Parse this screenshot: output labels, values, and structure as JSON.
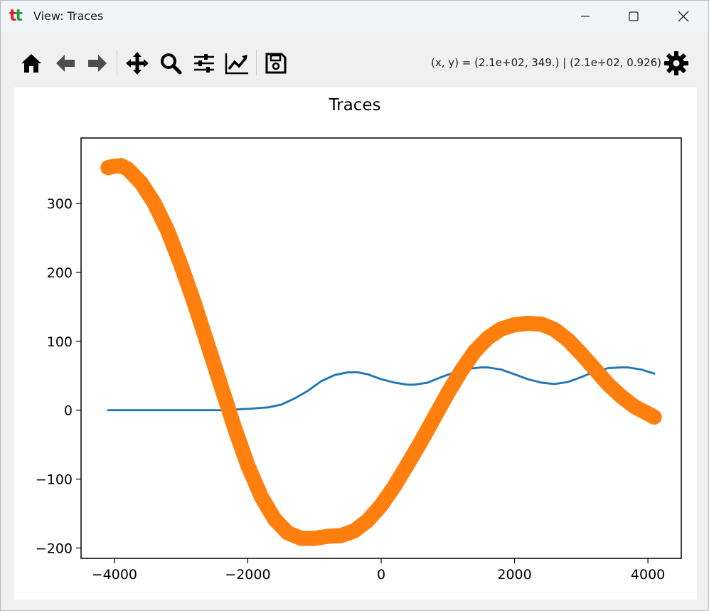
{
  "window": {
    "app_icon": "tt-logo",
    "title": "View: Traces",
    "controls": [
      "minimize-icon",
      "maximize-icon",
      "close-icon"
    ]
  },
  "toolbar": {
    "buttons": [
      {
        "name": "home",
        "icon": "home-icon"
      },
      {
        "name": "back",
        "icon": "arrow-left-icon"
      },
      {
        "name": "forward",
        "icon": "arrow-right-icon"
      },
      {
        "name": "pan",
        "icon": "move-arrows-icon"
      },
      {
        "name": "zoom",
        "icon": "magnifier-icon"
      },
      {
        "name": "subplots",
        "icon": "sliders-icon"
      },
      {
        "name": "axes",
        "icon": "line-chart-icon"
      },
      {
        "name": "save",
        "icon": "floppy-disk-icon"
      }
    ],
    "coordinates": "(x, y) = (2.1e+02, 349.) | (2.1e+02, 0.926)",
    "settings_icon": "gear-icon"
  },
  "chart_data": {
    "type": "line",
    "title": "Traces",
    "xlabel": "",
    "ylabel": "",
    "xlim": [
      -4500,
      4500
    ],
    "ylim": [
      -215,
      395
    ],
    "xticks": [
      -4000,
      -2000,
      0,
      2000,
      4000
    ],
    "yticks": [
      -200,
      -100,
      0,
      100,
      200,
      300
    ],
    "xtick_labels": [
      "−4000",
      "−2000",
      "0",
      "2000",
      "4000"
    ],
    "ytick_labels": [
      "−200",
      "−100",
      "0",
      "100",
      "200",
      "300"
    ],
    "grid": false,
    "legend": "none",
    "series": [
      {
        "color": "#1f77b4",
        "band_halfwidth": 1.5,
        "x": [
          -4096,
          -3000,
          -2300,
          -2200,
          -2000,
          -1700,
          -1500,
          -1300,
          -1100,
          -900,
          -700,
          -500,
          -350,
          -200,
          0,
          200,
          400,
          500,
          700,
          900,
          1100,
          1300,
          1500,
          1600,
          1800,
          2000,
          2200,
          2400,
          2600,
          2800,
          3000,
          3200,
          3400,
          3600,
          3700,
          3900,
          4096
        ],
        "y": [
          0,
          0,
          0,
          1,
          2,
          4,
          8,
          17,
          28,
          42,
          51,
          55,
          55,
          52,
          45,
          40,
          37,
          37,
          40,
          48,
          55,
          60,
          62,
          62,
          59,
          52,
          45,
          40,
          38,
          41,
          48,
          56,
          61,
          62,
          62,
          59,
          53
        ]
      },
      {
        "color": "#ff7f0e",
        "band_halfwidth": 11,
        "x": [
          -4096,
          -4000,
          -3900,
          -3800,
          -3600,
          -3400,
          -3200,
          -3000,
          -2800,
          -2600,
          -2400,
          -2200,
          -2000,
          -1800,
          -1600,
          -1400,
          -1200,
          -1000,
          -800,
          -600,
          -400,
          -200,
          0,
          200,
          400,
          600,
          800,
          1000,
          1200,
          1400,
          1600,
          1800,
          2000,
          2200,
          2400,
          2600,
          2800,
          3000,
          3200,
          3400,
          3600,
          3800,
          4000,
          4096
        ],
        "y": [
          352,
          354,
          355,
          350,
          330,
          300,
          260,
          210,
          155,
          95,
          35,
          -25,
          -80,
          -125,
          -158,
          -178,
          -186,
          -186,
          -183,
          -182,
          -175,
          -160,
          -138,
          -110,
          -78,
          -45,
          -10,
          25,
          57,
          85,
          105,
          118,
          124,
          126,
          125,
          117,
          102,
          82,
          60,
          38,
          20,
          5,
          -5,
          -10
        ]
      }
    ]
  }
}
